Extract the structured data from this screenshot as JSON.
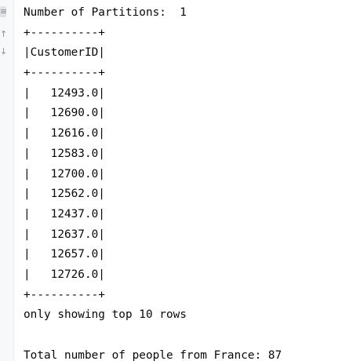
{
  "gutter": {
    "icons": [
      {
        "name": "soft-wrap-icon",
        "glyph": "≡"
      },
      {
        "name": "scroll-up-icon",
        "glyph": "↑"
      },
      {
        "name": "scroll-down-icon",
        "glyph": "↓"
      }
    ]
  },
  "console": {
    "partitions_line": "Number of Partitions:  1",
    "table": {
      "border": "+----------+",
      "header": "|CustomerID|",
      "rows": [
        "|   12493.0|",
        "|   12690.0|",
        "|   12616.0|",
        "|   12583.0|",
        "|   12700.0|",
        "|   12562.0|",
        "|   12437.0|",
        "|   12637.0|",
        "|   12657.0|",
        "|   12726.0|"
      ]
    },
    "footer_note": "only showing top 10 rows",
    "blank": "",
    "total_line": "Total number of people from France: 87"
  }
}
